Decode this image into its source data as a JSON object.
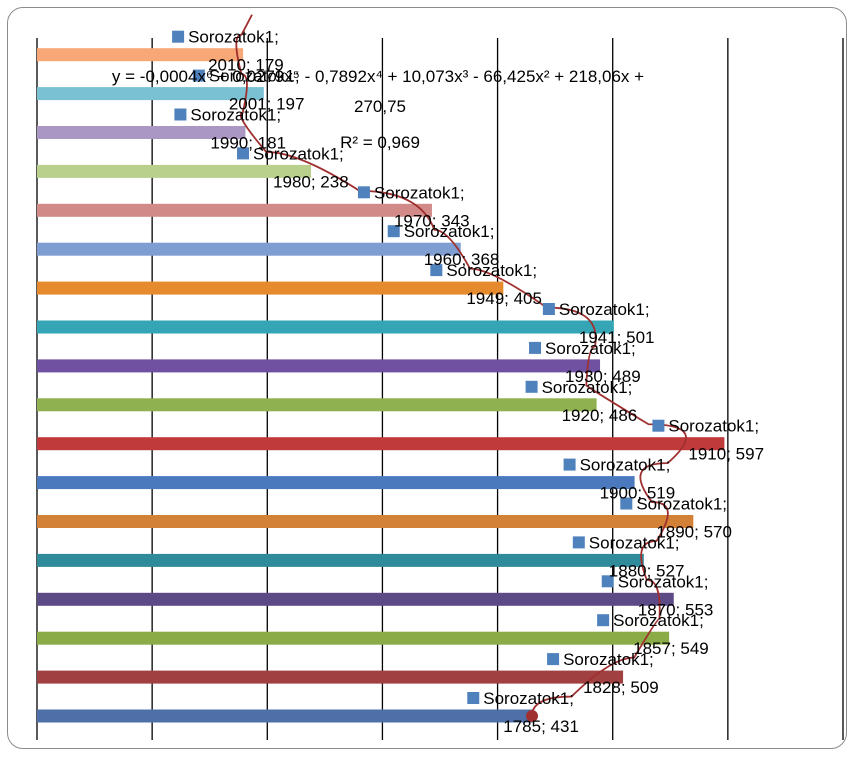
{
  "chart_data": {
    "type": "bar",
    "orientation": "horizontal",
    "categories": [
      "1785",
      "1828",
      "1857",
      "1870",
      "1880",
      "1890",
      "1900",
      "1910",
      "1920",
      "1930",
      "1941",
      "1949",
      "1960",
      "1970",
      "1980",
      "1990",
      "2001",
      "2010"
    ],
    "values": [
      431,
      509,
      549,
      553,
      527,
      570,
      519,
      597,
      486,
      489,
      501,
      405,
      368,
      343,
      238,
      181,
      197,
      179
    ],
    "bar_colors": [
      "#4f6fa8",
      "#a04040",
      "#8bab47",
      "#5c4a87",
      "#2f8a9a",
      "#d38136",
      "#4a7abd",
      "#c0393b",
      "#8fb14f",
      "#7050a0",
      "#34a5b5",
      "#e68a2e",
      "#7e9dd0",
      "#d28a89",
      "#b9cf8c",
      "#aa97c4",
      "#79c1d3",
      "#f8a777"
    ],
    "xlim": [
      0,
      700
    ],
    "grid": true,
    "series": [
      {
        "name": "Sorozatok1",
        "points": [
          {
            "x": "1785",
            "y": 431,
            "label_name": "Sorozatok1;",
            "label_value": "1785; 431"
          },
          {
            "x": "1828",
            "y": 509,
            "label_name": "Sorozatok1;",
            "label_value": "1828; 509"
          },
          {
            "x": "1857",
            "y": 549,
            "label_name": "Sorozatok1;",
            "label_value": "1857; 549"
          },
          {
            "x": "1870",
            "y": 553,
            "label_name": "Sorozatok1;",
            "label_value": "1870; 553"
          },
          {
            "x": "1880",
            "y": 527,
            "label_name": "Sorozatok1;",
            "label_value": "1880; 527"
          },
          {
            "x": "1890",
            "y": 570,
            "label_name": "Sorozatok1;",
            "label_value": "1890; 570"
          },
          {
            "x": "1900",
            "y": 519,
            "label_name": "Sorozatok1;",
            "label_value": "1900; 519"
          },
          {
            "x": "1910",
            "y": 597,
            "label_name": "Sorozatok1;",
            "label_value": "1910; 597"
          },
          {
            "x": "1920",
            "y": 486,
            "label_name": "Sorozatok1;",
            "label_value": "1920; 486"
          },
          {
            "x": "1930",
            "y": 489,
            "label_name": "Sorozatok1;",
            "label_value": "1930; 489"
          },
          {
            "x": "1941",
            "y": 501,
            "label_name": "Sorozatok1;",
            "label_value": "1941; 501"
          },
          {
            "x": "1949",
            "y": 405,
            "label_name": "Sorozatok1;",
            "label_value": "1949; 405"
          },
          {
            "x": "1960",
            "y": 368,
            "label_name": "Sorozatok1;",
            "label_value": "1960; 368"
          },
          {
            "x": "1970",
            "y": 343,
            "label_name": "Sorozatok1;",
            "label_value": "1970; 343"
          },
          {
            "x": "1980",
            "y": 238,
            "label_name": "Sorozatok1;",
            "label_value": "1980; 238"
          },
          {
            "x": "1990",
            "y": 181,
            "label_name": "Sorozatok1;",
            "label_value": "1990; 181"
          },
          {
            "x": "2001",
            "y": 197,
            "label_name": "Sorozatok1;",
            "label_value": "2001; 197"
          },
          {
            "x": "2010",
            "y": 179,
            "label_name": "Sorozatok1;",
            "label_value": "2010; 179"
          }
        ],
        "marker_color": "#4f81bd"
      }
    ],
    "trendline": {
      "type": "polynomial",
      "order": 6,
      "color": "#a03030",
      "equation_lines": [
        "y = -0,0004x⁶ + 0,0279x⁵ - 0,7892x⁴ + 10,073x³ - 66,425x² + 218,06x +",
        "270,75"
      ],
      "r_squared_label": "R² = 0,969"
    }
  }
}
